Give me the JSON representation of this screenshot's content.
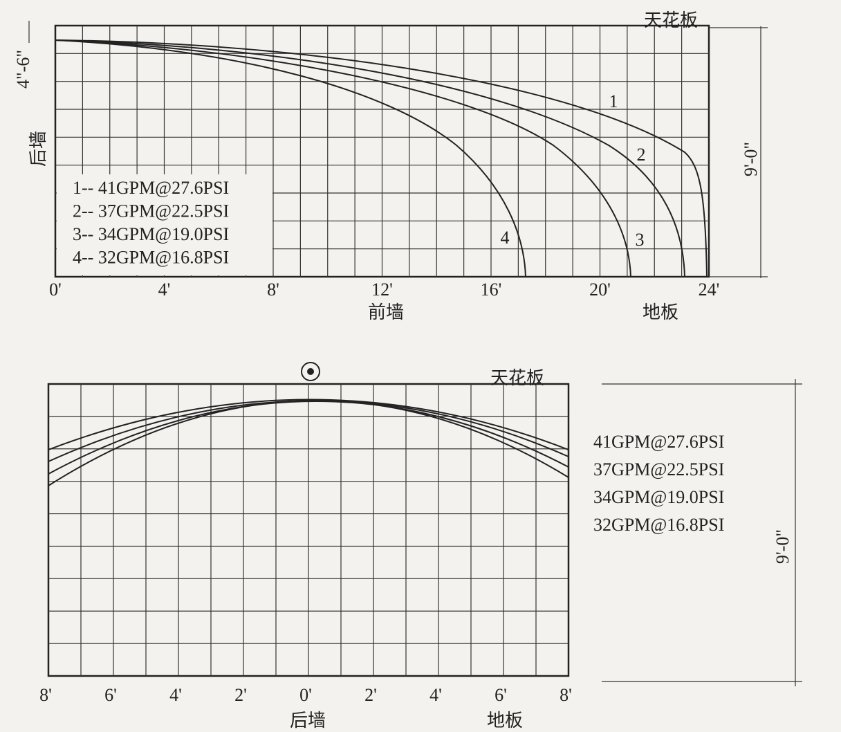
{
  "top": {
    "ceiling": "天花板",
    "floor": "地板",
    "front_wall": "前墙",
    "back_wall": "后墙",
    "height_dim": "9'-0\"",
    "offset_dim": "4\"-6\"",
    "x_ticks": [
      "0'",
      "4'",
      "8'",
      "12'",
      "16'",
      "20'",
      "24'"
    ],
    "curve_labels": [
      "1",
      "2",
      "3",
      "4"
    ],
    "legend": [
      "1-- 41GPM@27.6PSI",
      "2-- 37GPM@22.5PSI",
      "3-- 34GPM@19.0PSI",
      "4-- 32GPM@16.8PSI"
    ]
  },
  "bottom": {
    "ceiling": "天花板",
    "floor": "地板",
    "back_wall": "后墙",
    "height_dim": "9'-0\"",
    "x_ticks": [
      "8'",
      "6'",
      "4'",
      "2'",
      "0'",
      "2'",
      "4'",
      "6'",
      "8'"
    ],
    "legend": [
      "41GPM@27.6PSI",
      "37GPM@22.5PSI",
      "34GPM@19.0PSI",
      "32GPM@16.8PSI"
    ]
  }
}
